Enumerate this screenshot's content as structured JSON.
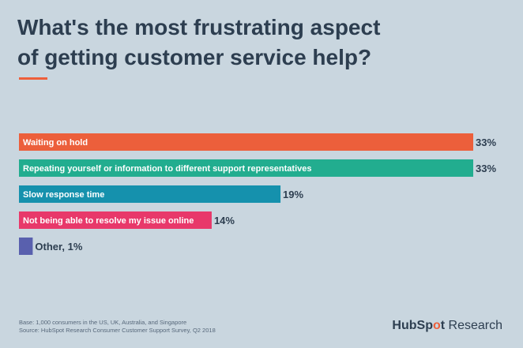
{
  "title_line1": "What's the most frustrating aspect",
  "title_line2": "of getting customer service help?",
  "accent": "#ee5f3a",
  "chart_data": {
    "type": "bar",
    "orientation": "horizontal",
    "categories": [
      "Waiting on hold",
      "Repeating yourself or information to different support representatives",
      "Slow response time",
      "Not being able to resolve my issue online",
      "Other"
    ],
    "values": [
      33,
      33,
      19,
      14,
      1
    ],
    "value_labels": [
      "33%",
      "33%",
      "19%",
      "14%",
      "Other, 1%"
    ],
    "colors": [
      "#ec5f3b",
      "#22ad8f",
      "#1591ad",
      "#e8386a",
      "#5960ae"
    ],
    "unit": "%",
    "xlim": [
      0,
      33
    ],
    "grid": false
  },
  "footer": {
    "base": "Base: 1,000 consumers in the US, UK, Australia, and Singapore",
    "source": "Source: HubSpot Research Consumer Customer Support Survey, Q2 2018"
  },
  "logo": {
    "brand": "HubSpot",
    "suffix": "Research"
  }
}
